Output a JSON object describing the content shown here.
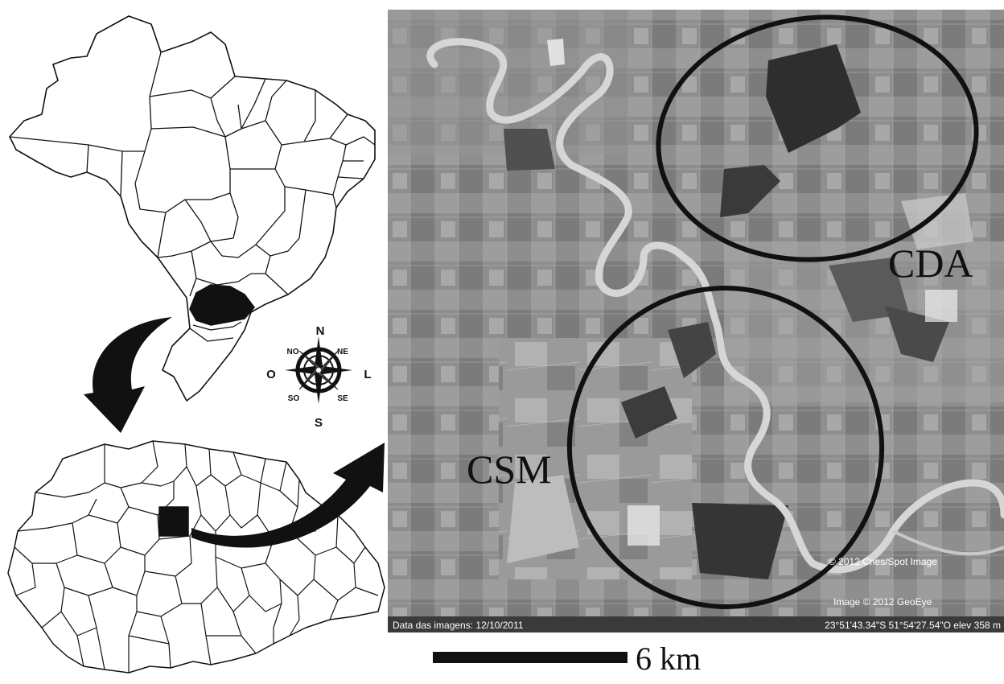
{
  "colors": {
    "ink": "#111111",
    "satellite_base": "#8f8f8f",
    "status_bar": "#3a3a3a",
    "background": "#ffffff"
  },
  "compass": {
    "north": "N",
    "northeast": "NE",
    "east": "L",
    "southeast": "SE",
    "south": "S",
    "southwest": "SO",
    "west": "O",
    "northwest": "NO"
  },
  "map_labels": {
    "area_cda": "CDA",
    "area_csm": "CSM"
  },
  "satellite": {
    "date_text": "Data das imagens: 12/10/2011",
    "coords_text": "23°51'43.34\"S  51°54'27.54\"O elev  358 m",
    "credit_spot": "© 2012 Cnes/Spot Image",
    "credit_geoeye": "Image © 2012 GeoEye"
  },
  "scale_bar": {
    "label": "6 km"
  },
  "icons": {
    "compass": "compass-rose-icon",
    "arrow_down": "curved-arrow-down-icon",
    "arrow_right": "curved-arrow-right-icon"
  }
}
